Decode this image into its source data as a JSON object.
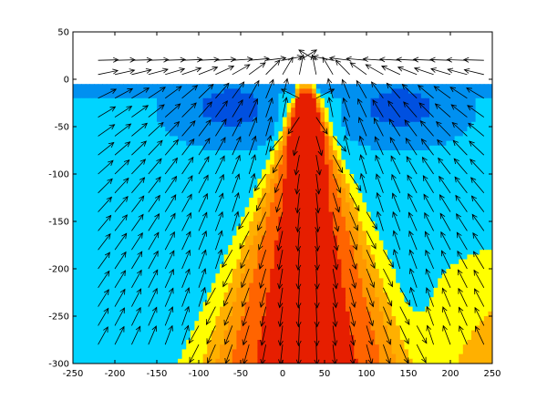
{
  "chart_data": {
    "type": "heatmap",
    "title": "",
    "xlabel": "",
    "ylabel": "",
    "xlim": [
      -250,
      250
    ],
    "ylim": [
      -300,
      50
    ],
    "xticks": [
      -250,
      -200,
      -150,
      -100,
      -50,
      0,
      50,
      100,
      150,
      200,
      250
    ],
    "yticks": [
      50,
      0,
      -50,
      -100,
      -150,
      -200,
      -250,
      -300
    ],
    "grid": false,
    "legend": "none",
    "colormap": [
      "#0000b4",
      "#0050e0",
      "#0090f0",
      "#00d4ff",
      "#ffff00",
      "#ffb000",
      "#ff9800",
      "#ff6400",
      "#e61e00"
    ],
    "field_domain": {
      "x": [
        -250,
        250
      ],
      "y": [
        -300,
        -5
      ]
    },
    "peak": {
      "x": 28,
      "y": -28
    },
    "arrow_field": {
      "x": [
        -220,
        -200,
        -180,
        -160,
        -140,
        -120,
        -100,
        -80,
        -60,
        -40,
        -20,
        0,
        20,
        40,
        60,
        80,
        100,
        120,
        140,
        160,
        180,
        200,
        220,
        240
      ],
      "y": [
        20,
        5,
        -20,
        -40,
        -60,
        -80,
        -100,
        -120,
        -140,
        -160,
        -180,
        -200,
        -220,
        -240,
        -260,
        -280
      ],
      "source": {
        "x": 30,
        "y": -25
      },
      "sink": {
        "x": 30,
        "y": 20
      }
    }
  }
}
